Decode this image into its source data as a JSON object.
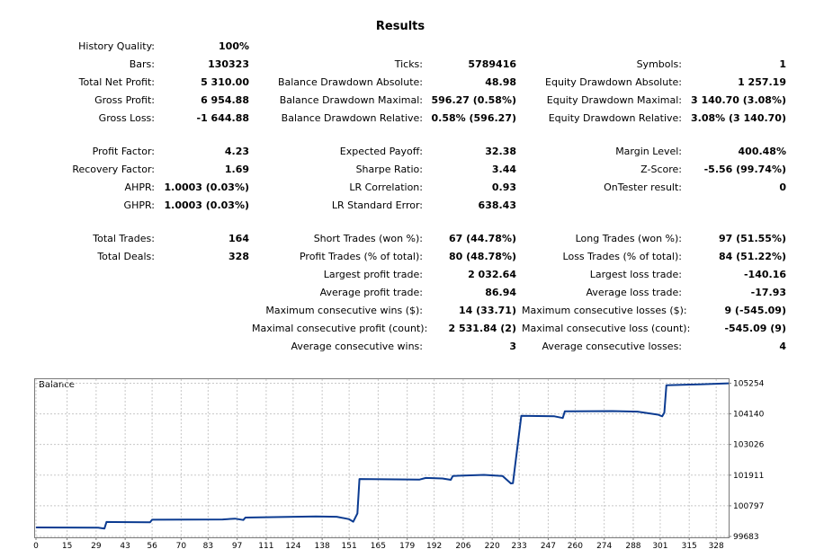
{
  "title": "Results",
  "stats": {
    "col1": [
      {
        "label": "History Quality:",
        "value": "100%"
      },
      {
        "label": "Bars:",
        "value": "130323"
      },
      {
        "label": "Total Net Profit:",
        "value": "5 310.00"
      },
      {
        "label": "Gross Profit:",
        "value": "6 954.88"
      },
      {
        "label": "Gross Loss:",
        "value": "-1 644.88"
      },
      {
        "label": "Profit Factor:",
        "value": "4.23"
      },
      {
        "label": "Recovery Factor:",
        "value": "1.69"
      },
      {
        "label": "AHPR:",
        "value": "1.0003 (0.03%)"
      },
      {
        "label": "GHPR:",
        "value": "1.0003 (0.03%)"
      },
      {
        "label": "Total Trades:",
        "value": "164"
      },
      {
        "label": "Total Deals:",
        "value": "328"
      }
    ],
    "col2": [
      {
        "label": "Ticks:",
        "value": "5789416"
      },
      {
        "label": "Balance Drawdown Absolute:",
        "value": "48.98"
      },
      {
        "label": "Balance Drawdown Maximal:",
        "value": "596.27 (0.58%)"
      },
      {
        "label": "Balance Drawdown Relative:",
        "value": "0.58% (596.27)"
      },
      {
        "label": "Expected Payoff:",
        "value": "32.38"
      },
      {
        "label": "Sharpe Ratio:",
        "value": "3.44"
      },
      {
        "label": "LR Correlation:",
        "value": "0.93"
      },
      {
        "label": "LR Standard Error:",
        "value": "638.43"
      },
      {
        "label": "Short Trades (won %):",
        "value": "67 (44.78%)"
      },
      {
        "label": "Profit Trades (% of total):",
        "value": "80 (48.78%)"
      },
      {
        "label": "Largest profit trade:",
        "value": "2 032.64"
      },
      {
        "label": "Average profit trade:",
        "value": "86.94"
      },
      {
        "label": "Maximum consecutive wins ($):",
        "value": "14 (33.71)"
      },
      {
        "label": "Maximal consecutive profit (count):",
        "value": "2 531.84 (2)"
      },
      {
        "label": "Average consecutive wins:",
        "value": "3"
      }
    ],
    "col3": [
      {
        "label": "Symbols:",
        "value": "1"
      },
      {
        "label": "Equity Drawdown Absolute:",
        "value": "1 257.19"
      },
      {
        "label": "Equity Drawdown Maximal:",
        "value": "3 140.70 (3.08%)"
      },
      {
        "label": "Equity Drawdown Relative:",
        "value": "3.08% (3 140.70)"
      },
      {
        "label": "Margin Level:",
        "value": "400.48%"
      },
      {
        "label": "Z-Score:",
        "value": "-5.56 (99.74%)"
      },
      {
        "label": "OnTester result:",
        "value": "0"
      },
      {
        "label": "Long Trades (won %):",
        "value": "97 (51.55%)"
      },
      {
        "label": "Loss Trades (% of total):",
        "value": "84 (51.22%)"
      },
      {
        "label": "Largest loss trade:",
        "value": "-140.16"
      },
      {
        "label": "Average loss trade:",
        "value": "-17.93"
      },
      {
        "label": "Maximum consecutive losses ($):",
        "value": "9 (-545.09)"
      },
      {
        "label": "Maximal consecutive loss (count):",
        "value": "-545.09 (9)"
      },
      {
        "label": "Average consecutive losses:",
        "value": "4"
      }
    ]
  },
  "chart_data": {
    "type": "line",
    "title": "Balance",
    "xlabel": "",
    "ylabel": "",
    "xlim": [
      0,
      334
    ],
    "ylim": [
      99683,
      105400
    ],
    "x_ticks": [
      0,
      15,
      29,
      43,
      56,
      70,
      83,
      97,
      111,
      124,
      138,
      151,
      165,
      179,
      192,
      206,
      220,
      233,
      247,
      260,
      274,
      288,
      301,
      315,
      328
    ],
    "y_ticks": [
      99683,
      100797,
      101911,
      103026,
      104140,
      105254
    ],
    "grid": true,
    "line_color": "#0b3b91",
    "series": [
      {
        "name": "Balance",
        "points": [
          [
            0,
            100010
          ],
          [
            30,
            100000
          ],
          [
            33,
            99970
          ],
          [
            34,
            100210
          ],
          [
            55,
            100200
          ],
          [
            56,
            100290
          ],
          [
            90,
            100300
          ],
          [
            96,
            100330
          ],
          [
            100,
            100280
          ],
          [
            101,
            100370
          ],
          [
            135,
            100410
          ],
          [
            145,
            100400
          ],
          [
            151,
            100310
          ],
          [
            153,
            100220
          ],
          [
            155,
            100520
          ],
          [
            156,
            101770
          ],
          [
            185,
            101750
          ],
          [
            188,
            101810
          ],
          [
            196,
            101790
          ],
          [
            200,
            101740
          ],
          [
            201,
            101880
          ],
          [
            216,
            101920
          ],
          [
            225,
            101880
          ],
          [
            229,
            101610
          ],
          [
            230,
            101620
          ],
          [
            234,
            104070
          ],
          [
            250,
            104050
          ],
          [
            254,
            103990
          ],
          [
            255,
            104230
          ],
          [
            278,
            104240
          ],
          [
            290,
            104220
          ],
          [
            300,
            104110
          ],
          [
            302,
            104050
          ],
          [
            303,
            104180
          ],
          [
            304,
            105180
          ],
          [
            320,
            105210
          ],
          [
            334,
            105250
          ]
        ]
      }
    ]
  }
}
